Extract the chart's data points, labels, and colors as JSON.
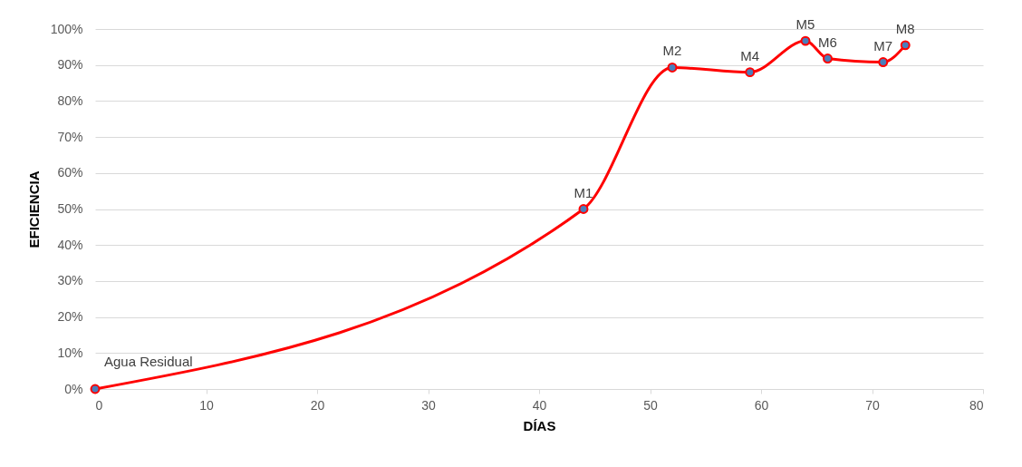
{
  "chart_data": {
    "type": "line",
    "xlabel": "DÍAS",
    "ylabel": "EFICIENCIA",
    "x": [
      0,
      44,
      52,
      59,
      64,
      66,
      71,
      73
    ],
    "series": [
      {
        "color": "#ff0000",
        "values": [
          0,
          50,
          89.3,
          88,
          96.7,
          91.8,
          90.8,
          95.5
        ]
      }
    ],
    "xlim": [
      0,
      80
    ],
    "xticks": [
      0,
      10,
      20,
      30,
      40,
      50,
      60,
      70,
      80
    ],
    "ylim": [
      0,
      100
    ],
    "yticks": [
      {
        "value": 0,
        "label": "0%"
      },
      {
        "value": 10,
        "label": "10%"
      },
      {
        "value": 20,
        "label": "20%"
      },
      {
        "value": 30,
        "label": "30%"
      },
      {
        "value": 40,
        "label": "40%"
      },
      {
        "value": 50,
        "label": "50%"
      },
      {
        "value": 60,
        "label": "60%"
      },
      {
        "value": 70,
        "label": "70%"
      },
      {
        "value": 80,
        "label": "80%"
      },
      {
        "value": 90,
        "label": "90%"
      },
      {
        "value": 100,
        "label": "100%"
      }
    ],
    "grid": "y",
    "marker": "circle",
    "line_style": "solid",
    "annotations": [
      {
        "text": "Agua Residual",
        "x": 0,
        "y": 0
      },
      {
        "text": "M1",
        "x": 44,
        "y": 50
      },
      {
        "text": "M2",
        "x": 52,
        "y": 89.3
      },
      {
        "text": "M4",
        "x": 59,
        "y": 88
      },
      {
        "text": "M5",
        "x": 64,
        "y": 96.7
      },
      {
        "text": "M6",
        "x": 66,
        "y": 91.8
      },
      {
        "text": "M7",
        "x": 71,
        "y": 90.8
      },
      {
        "text": "M8",
        "x": 73,
        "y": 95.5
      }
    ]
  }
}
